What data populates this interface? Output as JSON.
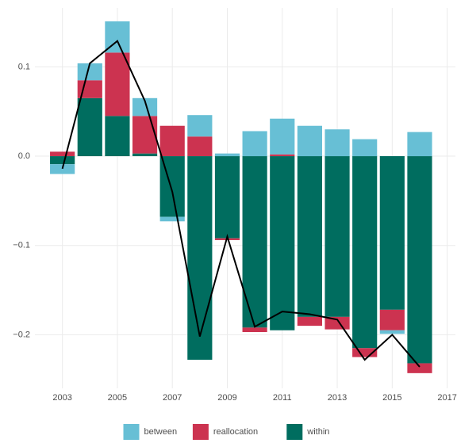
{
  "chart_data": {
    "type": "bar",
    "x": [
      2003,
      2004,
      2005,
      2006,
      2007,
      2008,
      2009,
      2010,
      2011,
      2012,
      2013,
      2014,
      2015,
      2016
    ],
    "series": [
      {
        "name": "between",
        "color": "#67bfd5",
        "values": [
          -0.011,
          0.019,
          0.035,
          0.02,
          -0.005,
          0.024,
          0.003,
          0.028,
          0.04,
          0.034,
          0.03,
          0.019,
          -0.004,
          0.027
        ]
      },
      {
        "name": "reallocation",
        "color": "#cc3350",
        "values": [
          0.005,
          0.02,
          0.071,
          0.042,
          0.034,
          0.022,
          -0.002,
          -0.005,
          0.002,
          -0.01,
          -0.014,
          -0.01,
          -0.023,
          -0.011
        ]
      },
      {
        "name": "within",
        "color": "#006d5f",
        "values": [
          -0.009,
          0.065,
          0.045,
          0.003,
          -0.068,
          -0.228,
          -0.092,
          -0.192,
          -0.195,
          -0.18,
          -0.18,
          -0.215,
          -0.172,
          -0.232
        ]
      }
    ],
    "line": {
      "color": "#000000",
      "values": [
        -0.014,
        0.104,
        0.129,
        0.062,
        -0.04,
        -0.202,
        -0.09,
        -0.191,
        -0.174,
        -0.177,
        -0.183,
        -0.228,
        -0.2,
        -0.236
      ]
    },
    "xlim": [
      2002,
      2017.3
    ],
    "xticks": [
      2003,
      2005,
      2007,
      2009,
      2011,
      2013,
      2015,
      2017
    ],
    "ylim": [
      -0.26,
      0.166
    ],
    "yticks": [
      {
        "value": -0.2,
        "label": "−0.2"
      },
      {
        "value": -0.1,
        "label": "−0.1"
      },
      {
        "value": 0,
        "label": "0.0"
      },
      0.1
    ],
    "grid": true,
    "legend": "bottom"
  }
}
